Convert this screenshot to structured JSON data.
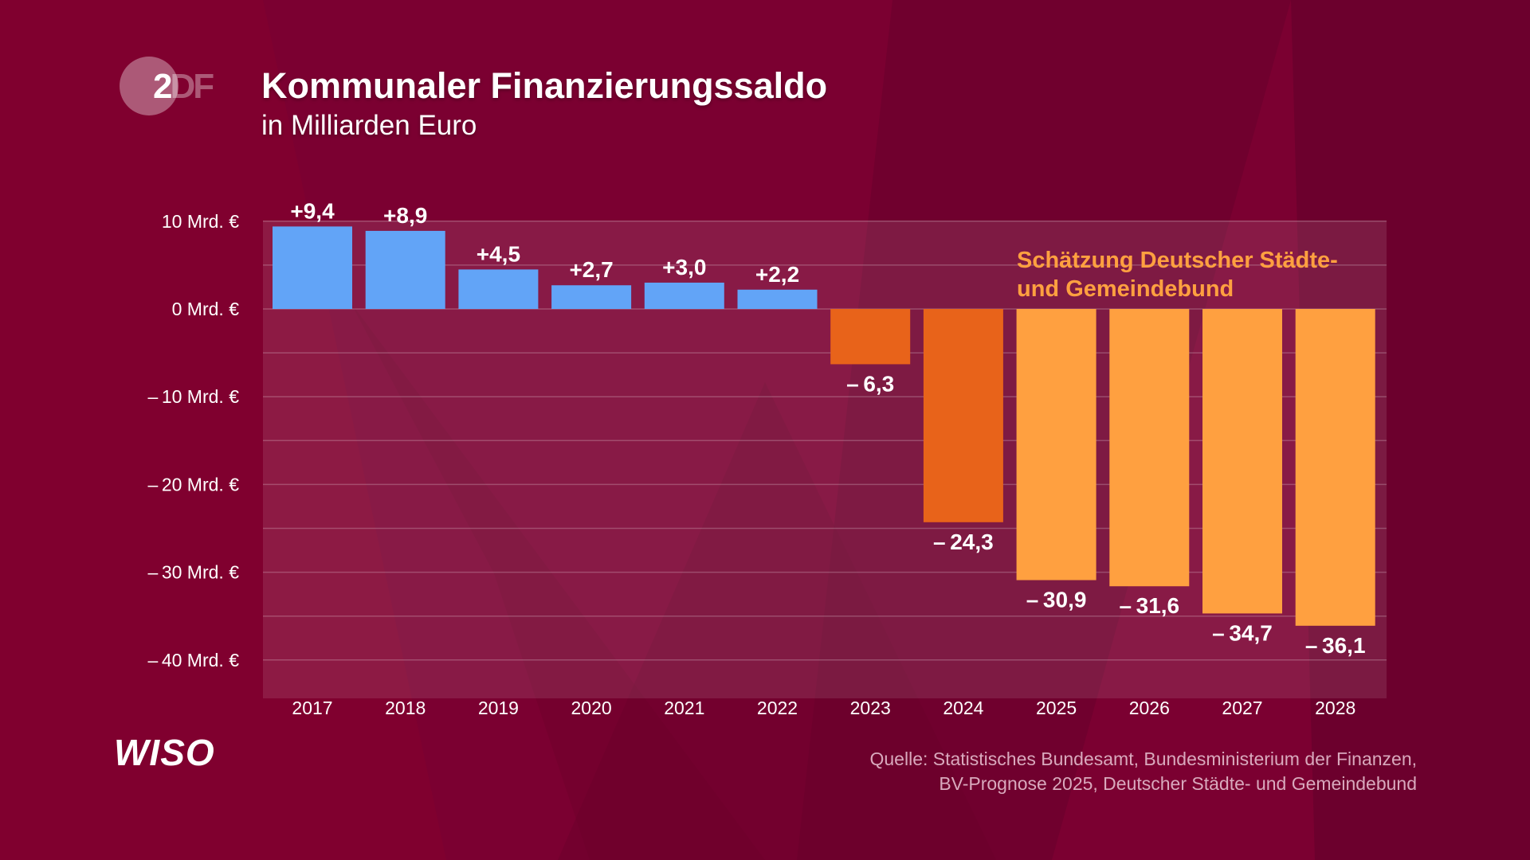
{
  "logo": {
    "text_a": "2",
    "text_b": "DF"
  },
  "header": {
    "title": "Kommunaler Finanzierungssaldo",
    "subtitle": "in Milliarden Euro"
  },
  "footer": {
    "brand": "WISO",
    "source_line1": "Quelle: Statistisches Bundesamt, Bundesministerium der Finanzen,",
    "source_line2": "BV-Prognose 2025, Deutscher Städte- und Gemeindebund"
  },
  "chart_data": {
    "type": "bar",
    "title": "Kommunaler Finanzierungssaldo",
    "subtitle": "in Milliarden Euro",
    "categories": [
      "2017",
      "2018",
      "2019",
      "2020",
      "2021",
      "2022",
      "2023",
      "2024",
      "2025",
      "2026",
      "2027",
      "2028"
    ],
    "values": [
      9.4,
      8.9,
      4.5,
      2.7,
      3.0,
      2.2,
      -6.3,
      -24.3,
      -30.9,
      -31.6,
      -34.7,
      -36.1
    ],
    "data_labels": [
      "+9,4",
      "+8,9",
      "+4,5",
      "+2,7",
      "+3,0",
      "+2,2",
      "– 6,3",
      "– 24,3",
      "– 30,9",
      "– 31,6",
      "– 34,7",
      "– 36,1"
    ],
    "bar_colors": [
      "#62a4f7",
      "#62a4f7",
      "#62a4f7",
      "#62a4f7",
      "#62a4f7",
      "#62a4f7",
      "#e8631a",
      "#e8631a",
      "#ffa040",
      "#ffa040",
      "#ffa040",
      "#ffa040"
    ],
    "ylim": [
      -44,
      10.1
    ],
    "yticks": [
      10,
      0,
      -10,
      -20,
      -30,
      -40
    ],
    "ytick_labels": [
      "10 Mrd. €",
      "0 Mrd. €",
      "– 10 Mrd. €",
      "– 20 Mrd. €",
      "– 30 Mrd. €",
      "– 40 Mrd. €"
    ],
    "grid": true,
    "annotation": {
      "line1": "Schätzung Deutscher Städte-",
      "line2": "und Gemeindebund",
      "color": "#ffa040"
    }
  }
}
